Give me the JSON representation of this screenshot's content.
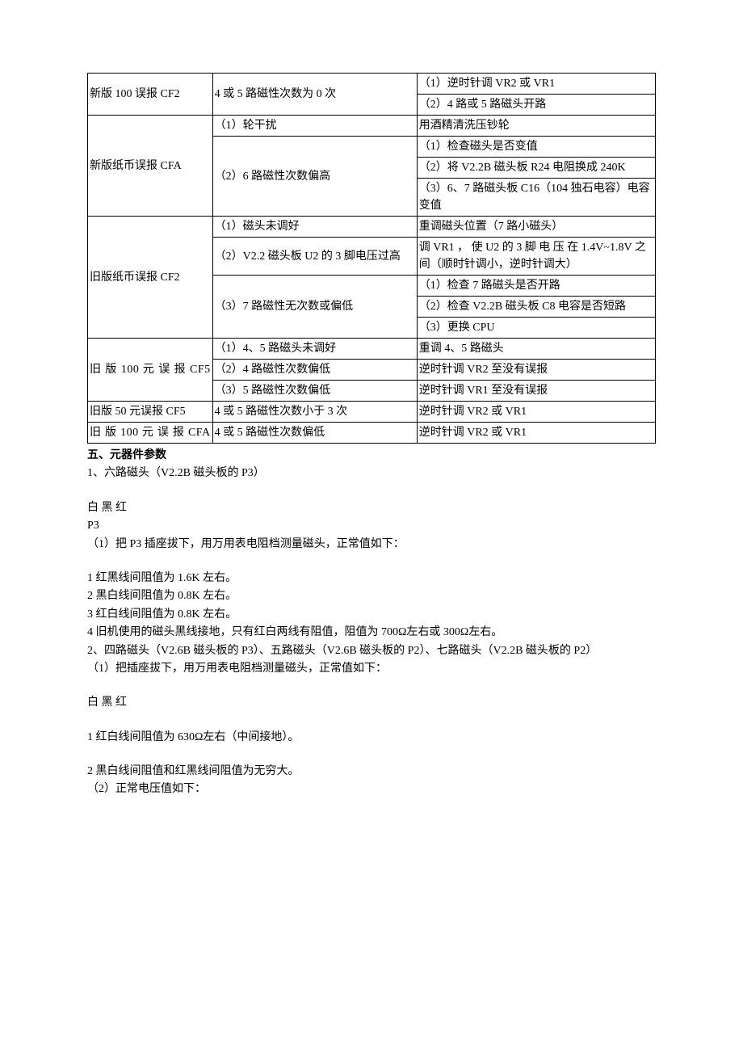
{
  "table": {
    "colWidths": [
      "22%",
      "36%",
      "42%"
    ],
    "rows": [
      {
        "c1": "新版 100 误报 CF2",
        "c1_rowspan": 2,
        "c2": "4 或 5 路磁性次数为 0 次",
        "c2_rowspan": 2,
        "c3": "（1）逆时针调 VR2 或 VR1"
      },
      {
        "c3": "（2）4 路或 5 路磁头开路"
      },
      {
        "c1": "新版纸币误报 CFA",
        "c1_rowspan": 4,
        "c2": "（1）轮干扰",
        "c3": "用酒精清洗压钞轮"
      },
      {
        "c2": "（2）6 路磁性次数偏高",
        "c2_rowspan": 3,
        "c3": "（1）检查磁头是否变值"
      },
      {
        "c3": "（2）将 V2.2B 磁头板 R24 电阻换成 240K"
      },
      {
        "c3": "（3）6、7 路磁头板 C16（104 独石电容）电容变值"
      },
      {
        "c1": "旧版纸币误报 CF2",
        "c1_rowspan": 5,
        "c2": "（1）磁头未调好",
        "c3": "重调磁头位置（7 路小磁头）"
      },
      {
        "c2": "（2）V2.2 磁头板 U2 的 3 脚电压过高",
        "c3": "调 VR1 ， 使 U2 的 3 脚 电 压 在 1.4V~1.8V 之间（顺时针调小，逆时针调大）"
      },
      {
        "c2": "（3）7 路磁性无次数或偏低",
        "c2_rowspan": 3,
        "c3": "（1）检查 7 路磁头是否开路"
      },
      {
        "c3": "（2）检查 V2.2B 磁头板 C8 电容是否短路"
      },
      {
        "c3": "（3）更换 CPU"
      },
      {
        "c1": "旧 版 100 元 误 报 CF5",
        "c1_rowspan": 3,
        "c1_sparse": true,
        "c2": "（1）4、5 路磁头未调好",
        "c3": "重调 4、5 路磁头"
      },
      {
        "c2": "（2）4 路磁性次数偏低",
        "c3": "逆时针调 VR2 至没有误报"
      },
      {
        "c2": "（3）5 路磁性次数偏低",
        "c3": "逆时针调 VR1 至没有误报"
      },
      {
        "c1": "旧版 50 元误报 CF5",
        "c2": "4 或 5 路磁性次数小于 3 次",
        "c3": "逆时针调 VR2 或 VR1"
      },
      {
        "c1": "旧 版 100 元 误 报 CFA",
        "c1_sparse": true,
        "c2": "4 或 5 路磁性次数偏低",
        "c3": "逆时针调 VR2 或 VR1"
      }
    ]
  },
  "heading": "五、元器件参数",
  "paragraphs": [
    {
      "text": "1、六路磁头（V2.2B 磁头板的 P3）",
      "gapAfter": true
    },
    {
      "text": "白  黑  红"
    },
    {
      "text": "P3"
    },
    {
      "text": "（1）把 P3 插座拔下，用万用表电阻档测量磁头，正常值如下：",
      "gapAfter": true
    },
    {
      "text": "1 红黑线间阻值为 1.6K 左右。"
    },
    {
      "text": "2 黑白线间阻值为 0.8K 左右。"
    },
    {
      "text": "3 红白线间阻值为 0.8K 左右。"
    },
    {
      "text": "4 旧机使用的磁头黑线接地，只有红白两线有阻值，阻值为 700Ω左右或 300Ω左右。"
    },
    {
      "text": "2、四路磁头（V2.6B 磁头板的 P3）、五路磁头（V2.6B 磁头板的 P2）、七路磁头（V2.2B 磁头板的 P2）"
    },
    {
      "text": "（1）把插座拔下，用万用表电阻档测量磁头，正常值如下：",
      "gapAfter": true
    },
    {
      "text": "白  黑  红",
      "gapAfter": true
    },
    {
      "text": "1 红白线间阻值为 630Ω左右（中间接地）。",
      "gapAfter": true
    },
    {
      "text": "2 黑白线间阻值和红黑线间阻值为无穷大。"
    },
    {
      "text": "（2）正常电压值如下："
    }
  ]
}
